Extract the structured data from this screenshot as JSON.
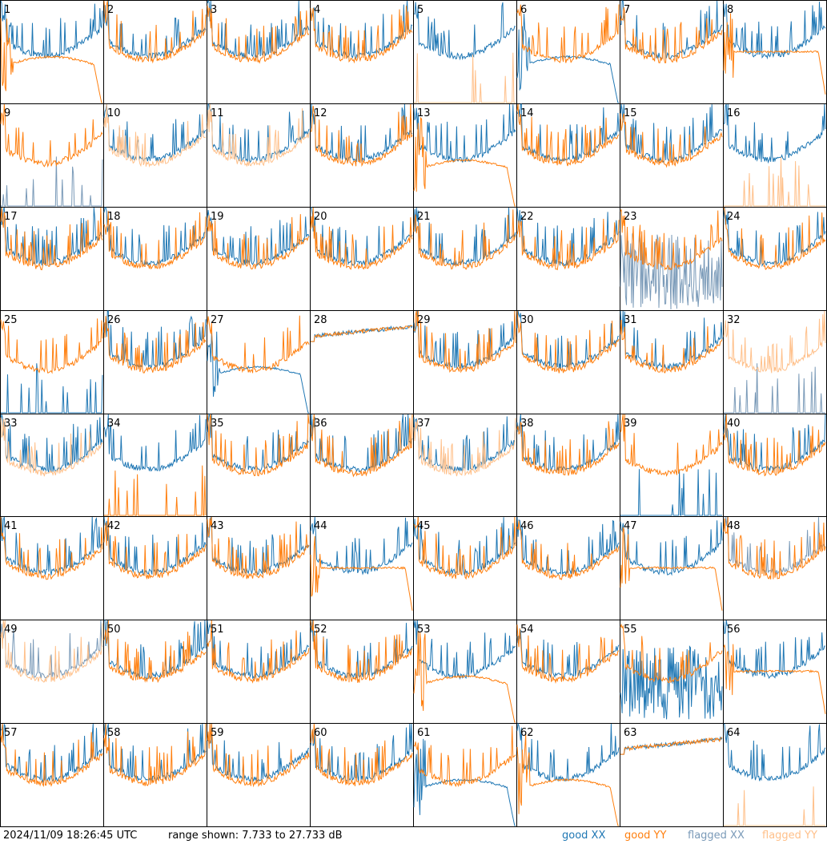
{
  "timestamp": "2024/11/09 18:26:45 UTC",
  "range_text": "range shown: 7.733 to 27.733 dB",
  "legend": [
    {
      "label": "good XX",
      "color": "#1f77b4"
    },
    {
      "label": "good YY",
      "color": "#ff7f0e"
    },
    {
      "label": "flagged XX",
      "color": "#7a9ab8"
    },
    {
      "label": "flagged YY",
      "color": "#ffc08a"
    }
  ],
  "chart_data": {
    "type": "line",
    "grid": {
      "rows": 8,
      "cols": 8
    },
    "ylim": [
      7.733,
      27.733
    ],
    "yunit": "dB",
    "panels": [
      {
        "id": 1,
        "xx": "normal",
        "yy": "dip_low",
        "flagged_xx": false,
        "flagged_yy": false
      },
      {
        "id": 2,
        "xx": "normal",
        "yy": "normal",
        "flagged_xx": false,
        "flagged_yy": false
      },
      {
        "id": 3,
        "xx": "normal",
        "yy": "normal",
        "flagged_xx": false,
        "flagged_yy": false
      },
      {
        "id": 4,
        "xx": "normal",
        "yy": "normal",
        "flagged_xx": false,
        "flagged_yy": false
      },
      {
        "id": 5,
        "xx": "normal",
        "yy": "spikes",
        "flagged_xx": false,
        "flagged_yy": true
      },
      {
        "id": 6,
        "xx": "dip_low",
        "yy": "normal",
        "flagged_xx": false,
        "flagged_yy": false
      },
      {
        "id": 7,
        "xx": "normal",
        "yy": "normal",
        "flagged_xx": false,
        "flagged_yy": false
      },
      {
        "id": 8,
        "xx": "normal",
        "yy": "dip",
        "flagged_xx": false,
        "flagged_yy": false
      },
      {
        "id": 9,
        "xx": "spikes",
        "yy": "normal",
        "flagged_xx": true,
        "flagged_yy": false
      },
      {
        "id": 10,
        "xx": "normal",
        "yy": "normal",
        "flagged_xx": false,
        "flagged_yy": true
      },
      {
        "id": 11,
        "xx": "normal",
        "yy": "normal",
        "flagged_xx": false,
        "flagged_yy": true
      },
      {
        "id": 12,
        "xx": "normal",
        "yy": "normal",
        "flagged_xx": false,
        "flagged_yy": false
      },
      {
        "id": 13,
        "xx": "normal",
        "yy": "dip_low",
        "flagged_xx": false,
        "flagged_yy": false
      },
      {
        "id": 14,
        "xx": "normal",
        "yy": "normal",
        "flagged_xx": false,
        "flagged_yy": false
      },
      {
        "id": 15,
        "xx": "normal",
        "yy": "normal",
        "flagged_xx": false,
        "flagged_yy": false
      },
      {
        "id": 16,
        "xx": "normal",
        "yy": "spikes",
        "flagged_xx": false,
        "flagged_yy": true
      },
      {
        "id": 17,
        "xx": "normal",
        "yy": "normal",
        "flagged_xx": false,
        "flagged_yy": false
      },
      {
        "id": 18,
        "xx": "normal",
        "yy": "normal",
        "flagged_xx": false,
        "flagged_yy": false
      },
      {
        "id": 19,
        "xx": "normal",
        "yy": "normal",
        "flagged_xx": false,
        "flagged_yy": false
      },
      {
        "id": 20,
        "xx": "normal",
        "yy": "normal",
        "flagged_xx": false,
        "flagged_yy": false
      },
      {
        "id": 21,
        "xx": "normal",
        "yy": "normal",
        "flagged_xx": false,
        "flagged_yy": false
      },
      {
        "id": 22,
        "xx": "normal",
        "yy": "normal",
        "flagged_xx": false,
        "flagged_yy": false
      },
      {
        "id": 23,
        "xx": "noise",
        "yy": "normal",
        "flagged_xx": true,
        "flagged_yy": false
      },
      {
        "id": 24,
        "xx": "normal",
        "yy": "normal",
        "flagged_xx": false,
        "flagged_yy": false
      },
      {
        "id": 25,
        "xx": "spikes",
        "yy": "normal",
        "flagged_xx": false,
        "flagged_yy": false
      },
      {
        "id": 26,
        "xx": "normal",
        "yy": "normal",
        "flagged_xx": false,
        "flagged_yy": false
      },
      {
        "id": 27,
        "xx": "dip_low",
        "yy": "normal",
        "flagged_xx": false,
        "flagged_yy": false
      },
      {
        "id": 28,
        "xx": "flat",
        "yy": "flat",
        "flagged_xx": false,
        "flagged_yy": false
      },
      {
        "id": 29,
        "xx": "normal",
        "yy": "normal",
        "flagged_xx": false,
        "flagged_yy": false
      },
      {
        "id": 30,
        "xx": "normal",
        "yy": "normal",
        "flagged_xx": false,
        "flagged_yy": false
      },
      {
        "id": 31,
        "xx": "normal",
        "yy": "normal",
        "flagged_xx": false,
        "flagged_yy": false
      },
      {
        "id": 32,
        "xx": "spikes",
        "yy": "normal",
        "flagged_xx": true,
        "flagged_yy": true
      },
      {
        "id": 33,
        "xx": "normal",
        "yy": "normal",
        "flagged_xx": false,
        "flagged_yy": true
      },
      {
        "id": 34,
        "xx": "normal",
        "yy": "spikes",
        "flagged_xx": false,
        "flagged_yy": false
      },
      {
        "id": 35,
        "xx": "normal",
        "yy": "normal",
        "flagged_xx": false,
        "flagged_yy": false
      },
      {
        "id": 36,
        "xx": "normal",
        "yy": "normal",
        "flagged_xx": false,
        "flagged_yy": false
      },
      {
        "id": 37,
        "xx": "normal",
        "yy": "normal",
        "flagged_xx": false,
        "flagged_yy": true
      },
      {
        "id": 38,
        "xx": "normal",
        "yy": "normal",
        "flagged_xx": false,
        "flagged_yy": false
      },
      {
        "id": 39,
        "xx": "spikes",
        "yy": "normal",
        "flagged_xx": false,
        "flagged_yy": false
      },
      {
        "id": 40,
        "xx": "normal",
        "yy": "normal",
        "flagged_xx": false,
        "flagged_yy": false
      },
      {
        "id": 41,
        "xx": "normal",
        "yy": "normal",
        "flagged_xx": false,
        "flagged_yy": false
      },
      {
        "id": 42,
        "xx": "normal",
        "yy": "normal",
        "flagged_xx": false,
        "flagged_yy": false
      },
      {
        "id": 43,
        "xx": "normal",
        "yy": "normal",
        "flagged_xx": false,
        "flagged_yy": false
      },
      {
        "id": 44,
        "xx": "normal",
        "yy": "dip",
        "flagged_xx": false,
        "flagged_yy": false
      },
      {
        "id": 45,
        "xx": "normal",
        "yy": "normal",
        "flagged_xx": false,
        "flagged_yy": false
      },
      {
        "id": 46,
        "xx": "normal",
        "yy": "normal",
        "flagged_xx": false,
        "flagged_yy": false
      },
      {
        "id": 47,
        "xx": "normal",
        "yy": "dip",
        "flagged_xx": false,
        "flagged_yy": false
      },
      {
        "id": 48,
        "xx": "normal",
        "yy": "normal",
        "flagged_xx": true,
        "flagged_yy": false
      },
      {
        "id": 49,
        "xx": "normal",
        "yy": "normal",
        "flagged_xx": true,
        "flagged_yy": true
      },
      {
        "id": 50,
        "xx": "normal",
        "yy": "normal",
        "flagged_xx": false,
        "flagged_yy": false
      },
      {
        "id": 51,
        "xx": "normal",
        "yy": "normal",
        "flagged_xx": false,
        "flagged_yy": false
      },
      {
        "id": 52,
        "xx": "normal",
        "yy": "normal",
        "flagged_xx": false,
        "flagged_yy": false
      },
      {
        "id": 53,
        "xx": "normal",
        "yy": "dip_low",
        "flagged_xx": false,
        "flagged_yy": false
      },
      {
        "id": 54,
        "xx": "normal",
        "yy": "normal",
        "flagged_xx": false,
        "flagged_yy": false
      },
      {
        "id": 55,
        "xx": "noise",
        "yy": "normal",
        "flagged_xx": false,
        "flagged_yy": false
      },
      {
        "id": 56,
        "xx": "normal",
        "yy": "dip",
        "flagged_xx": false,
        "flagged_yy": false
      },
      {
        "id": 57,
        "xx": "normal",
        "yy": "normal",
        "flagged_xx": false,
        "flagged_yy": false
      },
      {
        "id": 58,
        "xx": "normal",
        "yy": "normal",
        "flagged_xx": false,
        "flagged_yy": false
      },
      {
        "id": 59,
        "xx": "normal",
        "yy": "normal",
        "flagged_xx": false,
        "flagged_yy": false
      },
      {
        "id": 60,
        "xx": "normal",
        "yy": "normal",
        "flagged_xx": false,
        "flagged_yy": false
      },
      {
        "id": 61,
        "xx": "dip_low",
        "yy": "normal",
        "flagged_xx": false,
        "flagged_yy": false
      },
      {
        "id": 62,
        "xx": "normal",
        "yy": "dip_low",
        "flagged_xx": false,
        "flagged_yy": false
      },
      {
        "id": 63,
        "xx": "flat",
        "yy": "flat",
        "flagged_xx": false,
        "flagged_yy": false
      },
      {
        "id": 64,
        "xx": "normal",
        "yy": "spikes",
        "flagged_xx": false,
        "flagged_yy": true
      }
    ]
  }
}
